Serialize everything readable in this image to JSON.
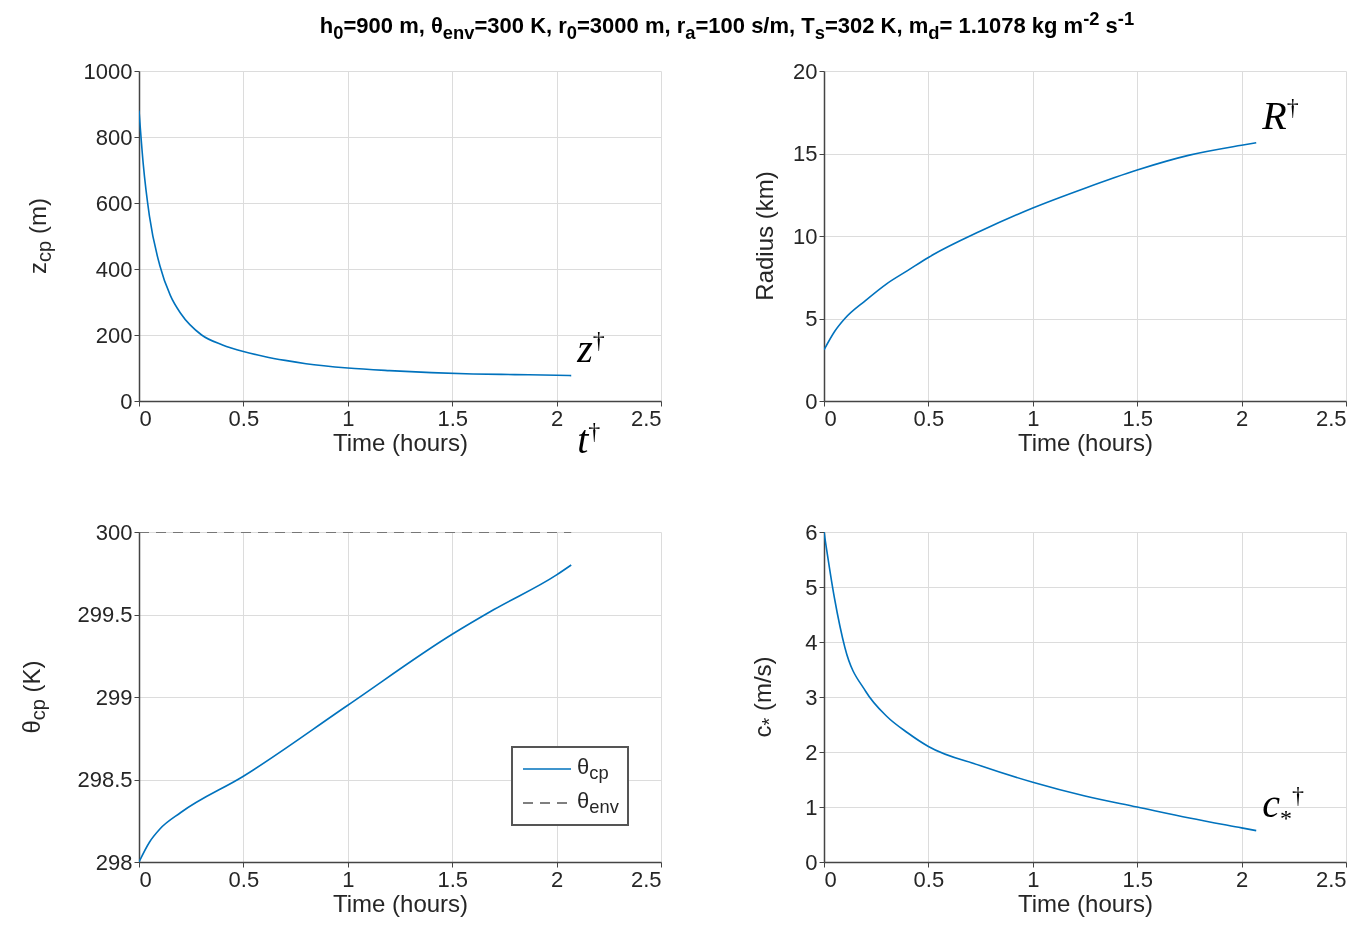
{
  "chart_data": [
    {
      "type": "line",
      "title": "h$_{0}$=900 m, θ$_{env}$=300 K, r$_{0}$=3000 m, r$_{a}$=100 s/m, T$_{s}$=302 K, m$_{d}$= 1.1078 kg m$^{-2}$ s$^{-1}$",
      "xlabel": "Time (hours)",
      "ylabel": "z$_{cp}$ (m)",
      "x": [
        0,
        0.02,
        0.05,
        0.1,
        0.15,
        0.2,
        0.3,
        0.4,
        0.5,
        0.6,
        0.7,
        0.8,
        1.0,
        1.2,
        1.4,
        1.6,
        1.8,
        2.0,
        2.07
      ],
      "series": [
        {
          "color": "#0072bd",
          "values": [
            880,
            720,
            560,
            410,
            320,
            265,
            200,
            170,
            150,
            135,
            123,
            113,
            100,
            92,
            86,
            82,
            80,
            78,
            77
          ]
        }
      ],
      "xlim": [
        0,
        2.5
      ],
      "xticks": [
        0,
        0.5,
        1,
        1.5,
        2,
        2.5
      ],
      "ylim": [
        0,
        1000
      ],
      "yticks": [
        0,
        200,
        400,
        600,
        800,
        1000
      ],
      "grid": true,
      "annotations": [
        "z$^{†}$",
        "t$^{†}$"
      ]
    },
    {
      "type": "line",
      "xlabel": "Time (hours)",
      "ylabel": "Radius (km)",
      "x": [
        0,
        0.05,
        0.1,
        0.2,
        0.3,
        0.4,
        0.5,
        0.75,
        1.0,
        1.25,
        1.5,
        1.75,
        2.0,
        2.07
      ],
      "series": [
        {
          "color": "#0072bd",
          "values": [
            3.1,
            4.2,
            5.0,
            6.1,
            7.1,
            7.9,
            8.7,
            10.3,
            11.7,
            12.9,
            14.0,
            14.9,
            15.5,
            15.65
          ]
        }
      ],
      "xlim": [
        0,
        2.5
      ],
      "xticks": [
        0,
        0.5,
        1,
        1.5,
        2,
        2.5
      ],
      "ylim": [
        0,
        20
      ],
      "yticks": [
        0,
        5,
        10,
        15,
        20
      ],
      "grid": true,
      "annotations": [
        "R$^{†}$"
      ]
    },
    {
      "type": "line",
      "xlabel": "Time (hours)",
      "ylabel": "θ$_{cp}$ (K)",
      "series": [
        {
          "name": "θ$_{cp}$",
          "color": "#0072bd",
          "line_style": "solid",
          "x": [
            0,
            0.05,
            0.1,
            0.2,
            0.5,
            1.0,
            1.5,
            1.7,
            2.0,
            2.07
          ],
          "values": [
            298.0,
            298.12,
            298.2,
            298.3,
            298.52,
            298.95,
            299.38,
            299.53,
            299.74,
            299.8
          ]
        },
        {
          "name": "θ$_{env}$",
          "color": "#555555",
          "line_style": "dashed",
          "x": [
            0,
            2.07
          ],
          "values": [
            300,
            300
          ]
        }
      ],
      "xlim": [
        0,
        2.5
      ],
      "xticks": [
        0,
        0.5,
        1,
        1.5,
        2,
        2.5
      ],
      "ylim": [
        298,
        300
      ],
      "yticks": [
        298,
        298.5,
        299,
        299.5,
        300
      ],
      "grid": true,
      "legend": "bottom right"
    },
    {
      "type": "line",
      "xlabel": "Time (hours)",
      "ylabel": "c$_{*}$ (m/s)",
      "x": [
        0,
        0.05,
        0.1,
        0.2,
        0.3,
        0.4,
        0.5,
        0.75,
        1.0,
        1.25,
        1.5,
        1.75,
        2.0,
        2.07
      ],
      "series": [
        {
          "color": "#0072bd",
          "values": [
            6.0,
            4.8,
            3.9,
            3.1,
            2.65,
            2.35,
            2.1,
            1.75,
            1.45,
            1.2,
            1.0,
            0.8,
            0.62,
            0.57
          ]
        }
      ],
      "xlim": [
        0,
        2.5
      ],
      "xticks": [
        0,
        0.5,
        1,
        1.5,
        2,
        2.5
      ],
      "ylim": [
        0,
        6
      ],
      "yticks": [
        0,
        1,
        2,
        3,
        4,
        5,
        6
      ],
      "grid": true,
      "annotations": [
        "c$_{*}$$^{†}$"
      ]
    }
  ]
}
